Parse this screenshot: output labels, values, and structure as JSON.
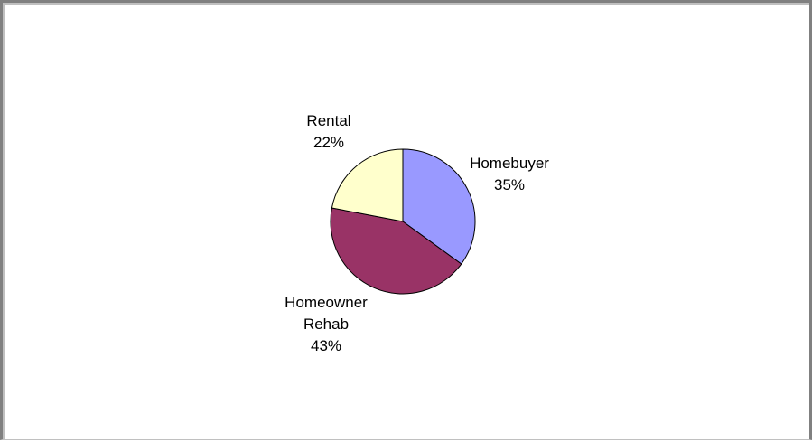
{
  "chart_data": {
    "type": "pie",
    "title": "",
    "legend": "none",
    "slices": [
      {
        "label_lines": [
          "Homebuyer"
        ],
        "percent_label": "35%",
        "value": 35,
        "color": "#9999ff"
      },
      {
        "label_lines": [
          "Homeowner",
          "Rehab"
        ],
        "percent_label": "43%",
        "value": 43,
        "color": "#993366"
      },
      {
        "label_lines": [
          "Rental"
        ],
        "percent_label": "22%",
        "value": 22,
        "color": "#ffffcc"
      }
    ]
  }
}
